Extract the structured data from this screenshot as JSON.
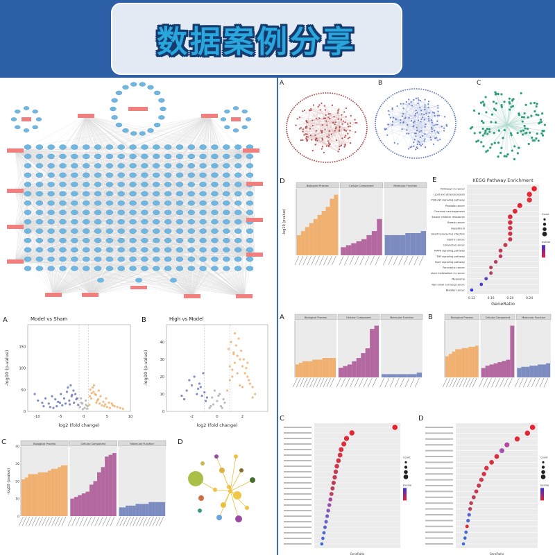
{
  "banner": {
    "title": "数据案例分享"
  },
  "colors": {
    "banner_bg": "#2d5fa6",
    "network_node": "#6fb6e0",
    "target_box": "#f08080",
    "bp": "#f0b070",
    "cc": "#b468a0",
    "mf": "#7c8cc0"
  },
  "network_top_left": {
    "type": "network",
    "node_rows": 14,
    "node_cols": 20,
    "target_labels": [
      "",
      "",
      "",
      "",
      "",
      "",
      "",
      "",
      "",
      "",
      "",
      "",
      "",
      ""
    ]
  },
  "networks_ABC": [
    {
      "panel_label": "A",
      "node_color": "#b05555"
    },
    {
      "panel_label": "B",
      "node_color": "#6a82c4"
    },
    {
      "panel_label": "C",
      "node_color": "#2f9e7e"
    }
  ],
  "chart_data": [
    {
      "id": "volcano_model_vs_sham",
      "type": "scatter",
      "panel_label": "A",
      "title": "Model vs Sham",
      "xlabel": "log2 (fold change)",
      "ylabel": "-log10 (p-value)",
      "xlim": [
        -12,
        10
      ],
      "ylim": [
        0,
        200
      ],
      "x_ticks": [
        -10,
        -5,
        0,
        5,
        10
      ],
      "y_ticks": [
        0,
        50,
        100,
        150
      ],
      "series": [
        {
          "color": "#6a7ab8",
          "x": [
            -10.5,
            -9.8,
            -8.9,
            -8.2,
            -7.5,
            -6.8,
            -6.1,
            -5.5,
            -4.9,
            -4.2,
            -3.6,
            -3.1,
            -2.6,
            -2.1,
            -1.6,
            -1.2,
            -5.8,
            -7.2,
            -3.4,
            -2.8,
            -4.6,
            -6.5,
            -2.2,
            -1.8,
            -1.4,
            -3.9,
            -5.1,
            -8.6,
            -2.5,
            -3.0
          ],
          "y": [
            40,
            25,
            20,
            30,
            18,
            35,
            28,
            22,
            40,
            30,
            45,
            25,
            35,
            20,
            28,
            15,
            12,
            10,
            55,
            60,
            14,
            8,
            48,
            40,
            30,
            18,
            20,
            12,
            38,
            16
          ]
        },
        {
          "color": "#f0b070",
          "x": [
            1.2,
            1.6,
            2.1,
            2.6,
            3.1,
            3.6,
            4.2,
            4.8,
            5.4,
            6.0,
            6.6,
            7.2,
            7.8,
            8.4,
            1.4,
            1.9,
            2.4,
            2.9,
            3.4,
            3.9,
            4.4,
            5.0,
            5.6,
            2.2,
            1.7,
            3.2,
            4.6,
            6.2,
            2.7,
            1.3
          ],
          "y": [
            15,
            30,
            45,
            38,
            28,
            35,
            22,
            30,
            20,
            18,
            12,
            10,
            8,
            6,
            50,
            55,
            40,
            25,
            18,
            14,
            12,
            10,
            8,
            60,
            42,
            48,
            16,
            14,
            20,
            35
          ]
        },
        {
          "color": "#b0b0b0",
          "x": [
            -0.8,
            -0.5,
            -0.2,
            0.2,
            0.5,
            0.8,
            -0.6,
            0.4,
            -0.3,
            0.7
          ],
          "y": [
            10,
            20,
            5,
            8,
            15,
            12,
            30,
            25,
            18,
            6
          ]
        }
      ]
    },
    {
      "id": "volcano_high_vs_model",
      "type": "scatter",
      "panel_label": "B",
      "title": "High vs Model",
      "xlabel": "log2 (fold change)",
      "ylabel": "-log10 (p-value)",
      "xlim": [
        -4,
        4
      ],
      "ylim": [
        0,
        50
      ],
      "x_ticks": [
        -2,
        0,
        2
      ],
      "y_ticks": [
        0,
        10,
        20,
        30,
        40
      ],
      "series": [
        {
          "color": "#6a7ab8",
          "x": [
            -2.8,
            -2.4,
            -2.0,
            -1.6,
            -1.3,
            -1.0,
            -0.8,
            -2.2,
            -1.8,
            -1.4,
            -1.1,
            -0.9,
            -2.6,
            -1.5,
            -1.2
          ],
          "y": [
            9,
            12,
            15,
            10,
            14,
            11,
            8,
            18,
            20,
            16,
            22,
            6,
            7,
            13,
            9
          ]
        },
        {
          "color": "#f0b070",
          "x": [
            0.8,
            1.0,
            1.2,
            1.4,
            1.6,
            1.8,
            2.0,
            2.2,
            2.4,
            2.6,
            2.8,
            3.0,
            0.9,
            1.1,
            1.3,
            1.5,
            1.7,
            1.9,
            2.1,
            2.3,
            2.5,
            1.2,
            1.6,
            2.0,
            1.4,
            1.8,
            2.4,
            1.0,
            2.8,
            1.3
          ],
          "y": [
            12,
            18,
            24,
            28,
            32,
            30,
            26,
            22,
            20,
            16,
            14,
            10,
            36,
            40,
            34,
            38,
            42,
            35,
            30,
            25,
            18,
            20,
            22,
            14,
            45,
            15,
            28,
            26,
            8,
            33
          ]
        },
        {
          "color": "#b0b0b0",
          "x": [
            -0.6,
            -0.3,
            0.0,
            0.3,
            0.6,
            -0.4,
            0.2,
            0.5,
            -0.2,
            0.1,
            -0.5,
            0.4
          ],
          "y": [
            2,
            4,
            6,
            3,
            5,
            8,
            10,
            7,
            12,
            9,
            3,
            2
          ]
        }
      ]
    },
    {
      "id": "go_bar_C_left",
      "type": "bar",
      "panel_label": "C",
      "facets": [
        "Biological Process",
        "Cellular Component",
        "Molecular Function"
      ],
      "ylabel": "-log10 (pvalue)",
      "ylim": [
        0,
        40
      ],
      "series": [
        {
          "name": "Biological Process",
          "color": "#f0b070",
          "values": [
            21,
            22,
            24,
            24,
            24,
            25,
            25,
            25,
            26,
            27,
            27,
            28,
            29,
            29
          ]
        },
        {
          "name": "Cellular Component",
          "color": "#b468a0",
          "values": [
            10,
            11,
            12,
            13,
            14,
            18,
            20,
            25,
            28,
            34,
            35,
            36
          ]
        },
        {
          "name": "Molecular Function",
          "color": "#7c8cc0",
          "values": [
            5,
            5,
            6,
            6,
            6,
            7,
            7,
            7,
            7,
            8,
            8,
            8,
            8,
            8
          ]
        }
      ]
    },
    {
      "id": "go_bar_D_right_top",
      "type": "bar",
      "panel_label": "D",
      "facets": [
        "Biological Process",
        "Cellular Component",
        "Molecular Function"
      ],
      "ylabel": "-log10 (pvalue)",
      "series": [
        {
          "name": "Biological Process",
          "color": "#f0b070",
          "values": [
            10,
            12,
            14,
            16,
            18,
            20,
            22,
            24,
            28,
            30
          ]
        },
        {
          "name": "Cellular Component",
          "color": "#b468a0",
          "values": [
            4,
            5,
            6,
            7,
            8,
            10,
            12,
            18
          ]
        },
        {
          "name": "Molecular Function",
          "color": "#7c8cc0",
          "values": [
            10,
            10,
            10,
            10,
            11,
            11,
            11,
            12
          ]
        }
      ]
    },
    {
      "id": "kegg_dot_E",
      "type": "scatter",
      "panel_label": "E",
      "title": "KEGG Pathway Enrichment",
      "xlabel": "GeneRatio",
      "x_ticks": [
        0.12,
        0.16,
        0.2,
        0.24
      ],
      "legend": {
        "size_title": "Count",
        "color_title": "pvalue"
      },
      "categories": [
        "Pathways in cancer",
        "Lipid and atherosclerosis",
        "PI3K-Akt signaling pathway",
        "Prostate cancer",
        "Chemical carcinogenesis",
        "EGFR tyrosine kinase inhibitor resistance",
        "Breast cancer",
        "Hepatitis B",
        "Kaposi sarcoma-associated herpesvirus infection",
        "Gastric cancer",
        "Colorectal cancer",
        "MAPK signaling pathway",
        "TNF signaling pathway",
        "FoxO signaling pathway",
        "Pancreatic cancer",
        "Central carbon metabolism in cancer",
        "Melanoma",
        "Non-small cell lung cancer",
        "Bladder cancer"
      ],
      "x": [
        0.25,
        0.24,
        0.24,
        0.22,
        0.21,
        0.2,
        0.2,
        0.2,
        0.2,
        0.2,
        0.19,
        0.18,
        0.18,
        0.17,
        0.16,
        0.16,
        0.15,
        0.14,
        0.12
      ],
      "color_values": [
        "#e8202e",
        "#e42a36",
        "#e0303c",
        "#e02436",
        "#dc2c3c",
        "#d8303e",
        "#d43242",
        "#d03446",
        "#cc3648",
        "#c8384c",
        "#c43a50",
        "#c03c54",
        "#bc3e58",
        "#b8405c",
        "#b44260",
        "#b04464",
        "#5c40c0",
        "#4c3ccc",
        "#3830d8"
      ]
    },
    {
      "id": "go_bar_A_mid",
      "type": "bar",
      "panel_label": "A",
      "facets": [
        "Biological Process",
        "Cellular Component",
        "Molecular Function"
      ],
      "series": [
        {
          "name": "Biological Process",
          "color": "#f0b070",
          "values": [
            8,
            9,
            10,
            10,
            10,
            11,
            11,
            11,
            12,
            12,
            12,
            12
          ]
        },
        {
          "name": "Cellular Component",
          "color": "#b468a0",
          "values": [
            6,
            7,
            8,
            10,
            12,
            15,
            18,
            30,
            32
          ]
        },
        {
          "name": "Molecular Function",
          "color": "#7c8cc0",
          "values": [
            2,
            2,
            2,
            2,
            2,
            2,
            2,
            3
          ]
        }
      ]
    },
    {
      "id": "go_bar_B_mid",
      "type": "bar",
      "panel_label": "B",
      "facets": [
        "Biological Process",
        "Cellular Component",
        "Molecular Function"
      ],
      "series": [
        {
          "name": "Biological Process",
          "color": "#f0b070",
          "values": [
            18,
            20,
            22,
            24,
            24,
            25,
            25,
            26,
            26,
            27
          ]
        },
        {
          "name": "Cellular Component",
          "color": "#b468a0",
          "values": [
            8,
            10,
            11,
            12,
            13,
            14,
            15,
            44
          ]
        },
        {
          "name": "Molecular Function",
          "color": "#7c8cc0",
          "values": [
            8,
            9,
            9,
            10,
            10,
            11,
            11,
            12
          ]
        }
      ]
    },
    {
      "id": "kegg_dot_C",
      "type": "scatter",
      "panel_label": "C",
      "xlabel": "GeneRatio",
      "legend": {
        "size_title": "Count",
        "color_title": "pvalue"
      },
      "categories": [
        "",
        "",
        "",
        "",
        "",
        "",
        "",
        "",
        "",
        "",
        "",
        "",
        "",
        "",
        "",
        "",
        "",
        "",
        "",
        "",
        "",
        ""
      ],
      "x": [
        0.26,
        0.18,
        0.17,
        0.165,
        0.16,
        0.158,
        0.155,
        0.152,
        0.15,
        0.148,
        0.146,
        0.144,
        0.142,
        0.14,
        0.138,
        0.136,
        0.134,
        0.132,
        0.13,
        0.128,
        0.126,
        0.124
      ],
      "color_values": [
        "#e82030",
        "#e42634",
        "#e02a38",
        "#dc2e3c",
        "#d83240",
        "#d43444",
        "#d03648",
        "#cc384c",
        "#c83a50",
        "#c43c54",
        "#c03e58",
        "#bc405c",
        "#b84260",
        "#a848a0",
        "#9850b0",
        "#8856b8",
        "#785cc0",
        "#6a60c8",
        "#5c64cc",
        "#5066d0",
        "#4468d4",
        "#386ad8"
      ]
    },
    {
      "id": "kegg_dot_D",
      "type": "scatter",
      "panel_label": "D",
      "xlabel": "GeneRatio",
      "legend": {
        "size_title": "Count",
        "color_title": "pvalue"
      },
      "categories": [
        "",
        "",
        "",
        "",
        "",
        "",
        "",
        "",
        "",
        "",
        "",
        "",
        "",
        "",
        "",
        "",
        "",
        "",
        "",
        "",
        ""
      ],
      "x": [
        0.3,
        0.29,
        0.27,
        0.25,
        0.24,
        0.23,
        0.22,
        0.21,
        0.205,
        0.2,
        0.195,
        0.19,
        0.185,
        0.18,
        0.178,
        0.176,
        0.174,
        0.172,
        0.17,
        0.168,
        0.165
      ],
      "color_values": [
        "#e82030",
        "#e42634",
        "#e02a38",
        "#b848a0",
        "#a850b0",
        "#dc2e3c",
        "#d83240",
        "#d43444",
        "#d03648",
        "#cc384c",
        "#c83a50",
        "#c43c54",
        "#c03e58",
        "#bc405c",
        "#b84260",
        "#5c64cc",
        "#5066d0",
        "#e02a38",
        "#4468d4",
        "#386ad8",
        "#3a6cdc"
      ]
    }
  ],
  "bubble_network_D": {
    "panel_label": "D"
  }
}
